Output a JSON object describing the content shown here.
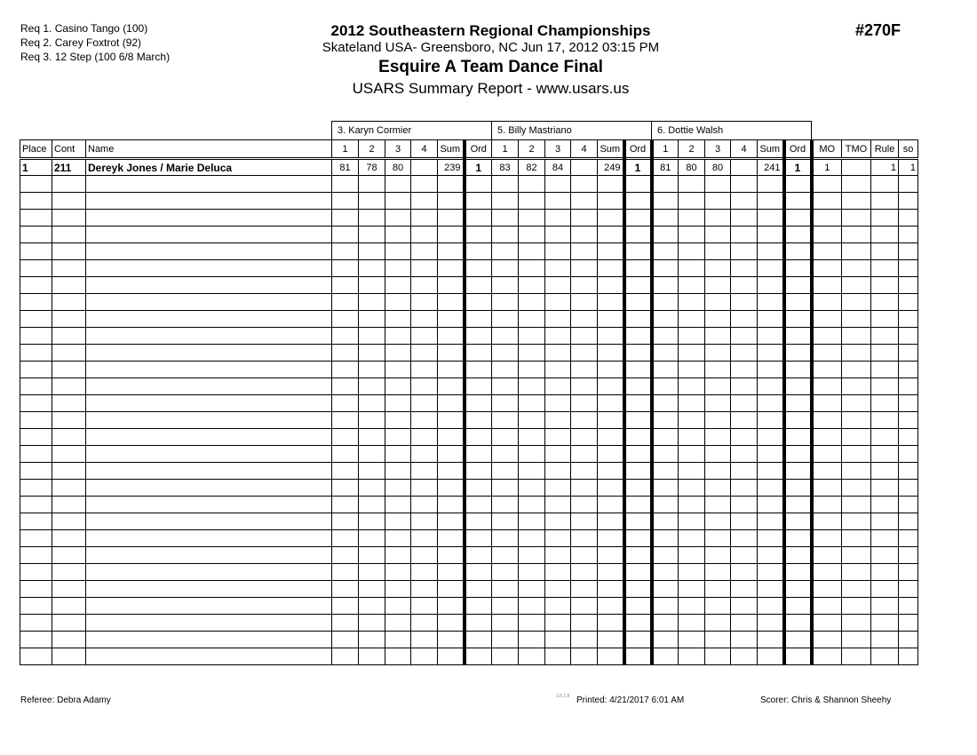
{
  "requirements": [
    "Req  1.  Casino Tango (100)",
    "Req  2.  Carey Foxtrot (92)",
    "Req  3.  12 Step (100 6/8 March)"
  ],
  "header": {
    "title": "2012 Southeastern Regional Championships",
    "subtitle": "Skateland USA- Greensboro, NC  Jun 17, 2012  03:15 PM",
    "event": "Esquire A Team Dance Final",
    "report": "USARS Summary Report - www.usars.us",
    "event_number": "#270F"
  },
  "judges": [
    "3.  Karyn Cormier",
    "5.  Billy Mastriano",
    "6.  Dottie Walsh"
  ],
  "columns": {
    "place": "Place",
    "cont": "Cont",
    "name": "Name",
    "judge_cols": [
      "1",
      "2",
      "3",
      "4",
      "Sum",
      "Ord"
    ],
    "tail": [
      "MO",
      "TMO",
      "Rule",
      "so"
    ]
  },
  "rows": [
    {
      "place": "1",
      "cont": "211",
      "name": "Dereyk Jones / Marie Deluca",
      "judges": [
        {
          "scores": [
            "81",
            "78",
            "80",
            ""
          ],
          "sum": "239",
          "ord": "1"
        },
        {
          "scores": [
            "83",
            "82",
            "84",
            ""
          ],
          "sum": "249",
          "ord": "1"
        },
        {
          "scores": [
            "81",
            "80",
            "80",
            ""
          ],
          "sum": "241",
          "ord": "1"
        }
      ],
      "mo": "1",
      "tmo": "",
      "rule": "1",
      "so": "1"
    }
  ],
  "empty_row_count": 29,
  "footer": {
    "referee": "Referee:  Debra Adamy",
    "version": "3.8.1.8",
    "printed": "Printed:  4/21/2017  6:01 AM",
    "scorer": "Scorer:   Chris & Shannon Sheehy"
  }
}
